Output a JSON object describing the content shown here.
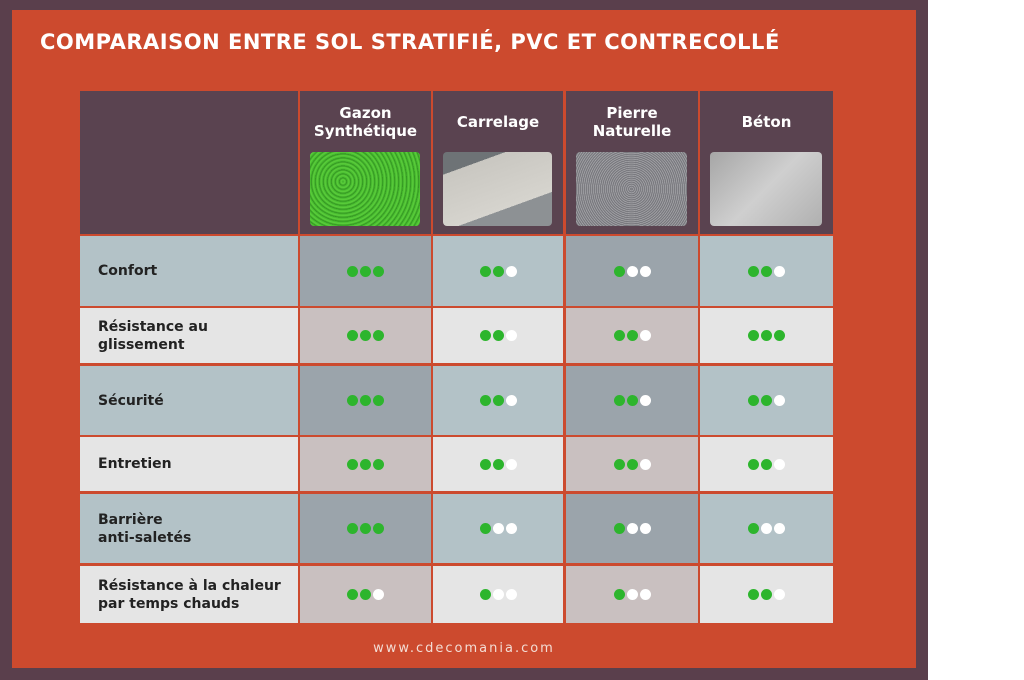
{
  "header": {
    "title": "COMPARAISON ENTRE SOL STRATIFIÉ, PVC ET CONTRECOLLÉ"
  },
  "table": {
    "columns": [
      "Gazon\nSynthétique",
      "Carrelage",
      "Pierre\nNaturelle",
      "Béton"
    ],
    "rows": [
      {
        "label": "Confort",
        "ratings": [
          3,
          2,
          1,
          2
        ]
      },
      {
        "label": "Résistance au\nglissement",
        "ratings": [
          3,
          2,
          2,
          3
        ]
      },
      {
        "label": "Sécurité",
        "ratings": [
          3,
          2,
          2,
          2
        ]
      },
      {
        "label": "Entretien",
        "ratings": [
          3,
          2,
          2,
          2
        ]
      },
      {
        "label": "Barrière\nanti-saletés",
        "ratings": [
          3,
          1,
          1,
          1
        ]
      },
      {
        "label": "Résistance à la chaleur\npar temps chauds",
        "ratings": [
          2,
          1,
          1,
          2
        ]
      }
    ]
  },
  "footer": {
    "url": "www.cdecomania.com"
  }
}
